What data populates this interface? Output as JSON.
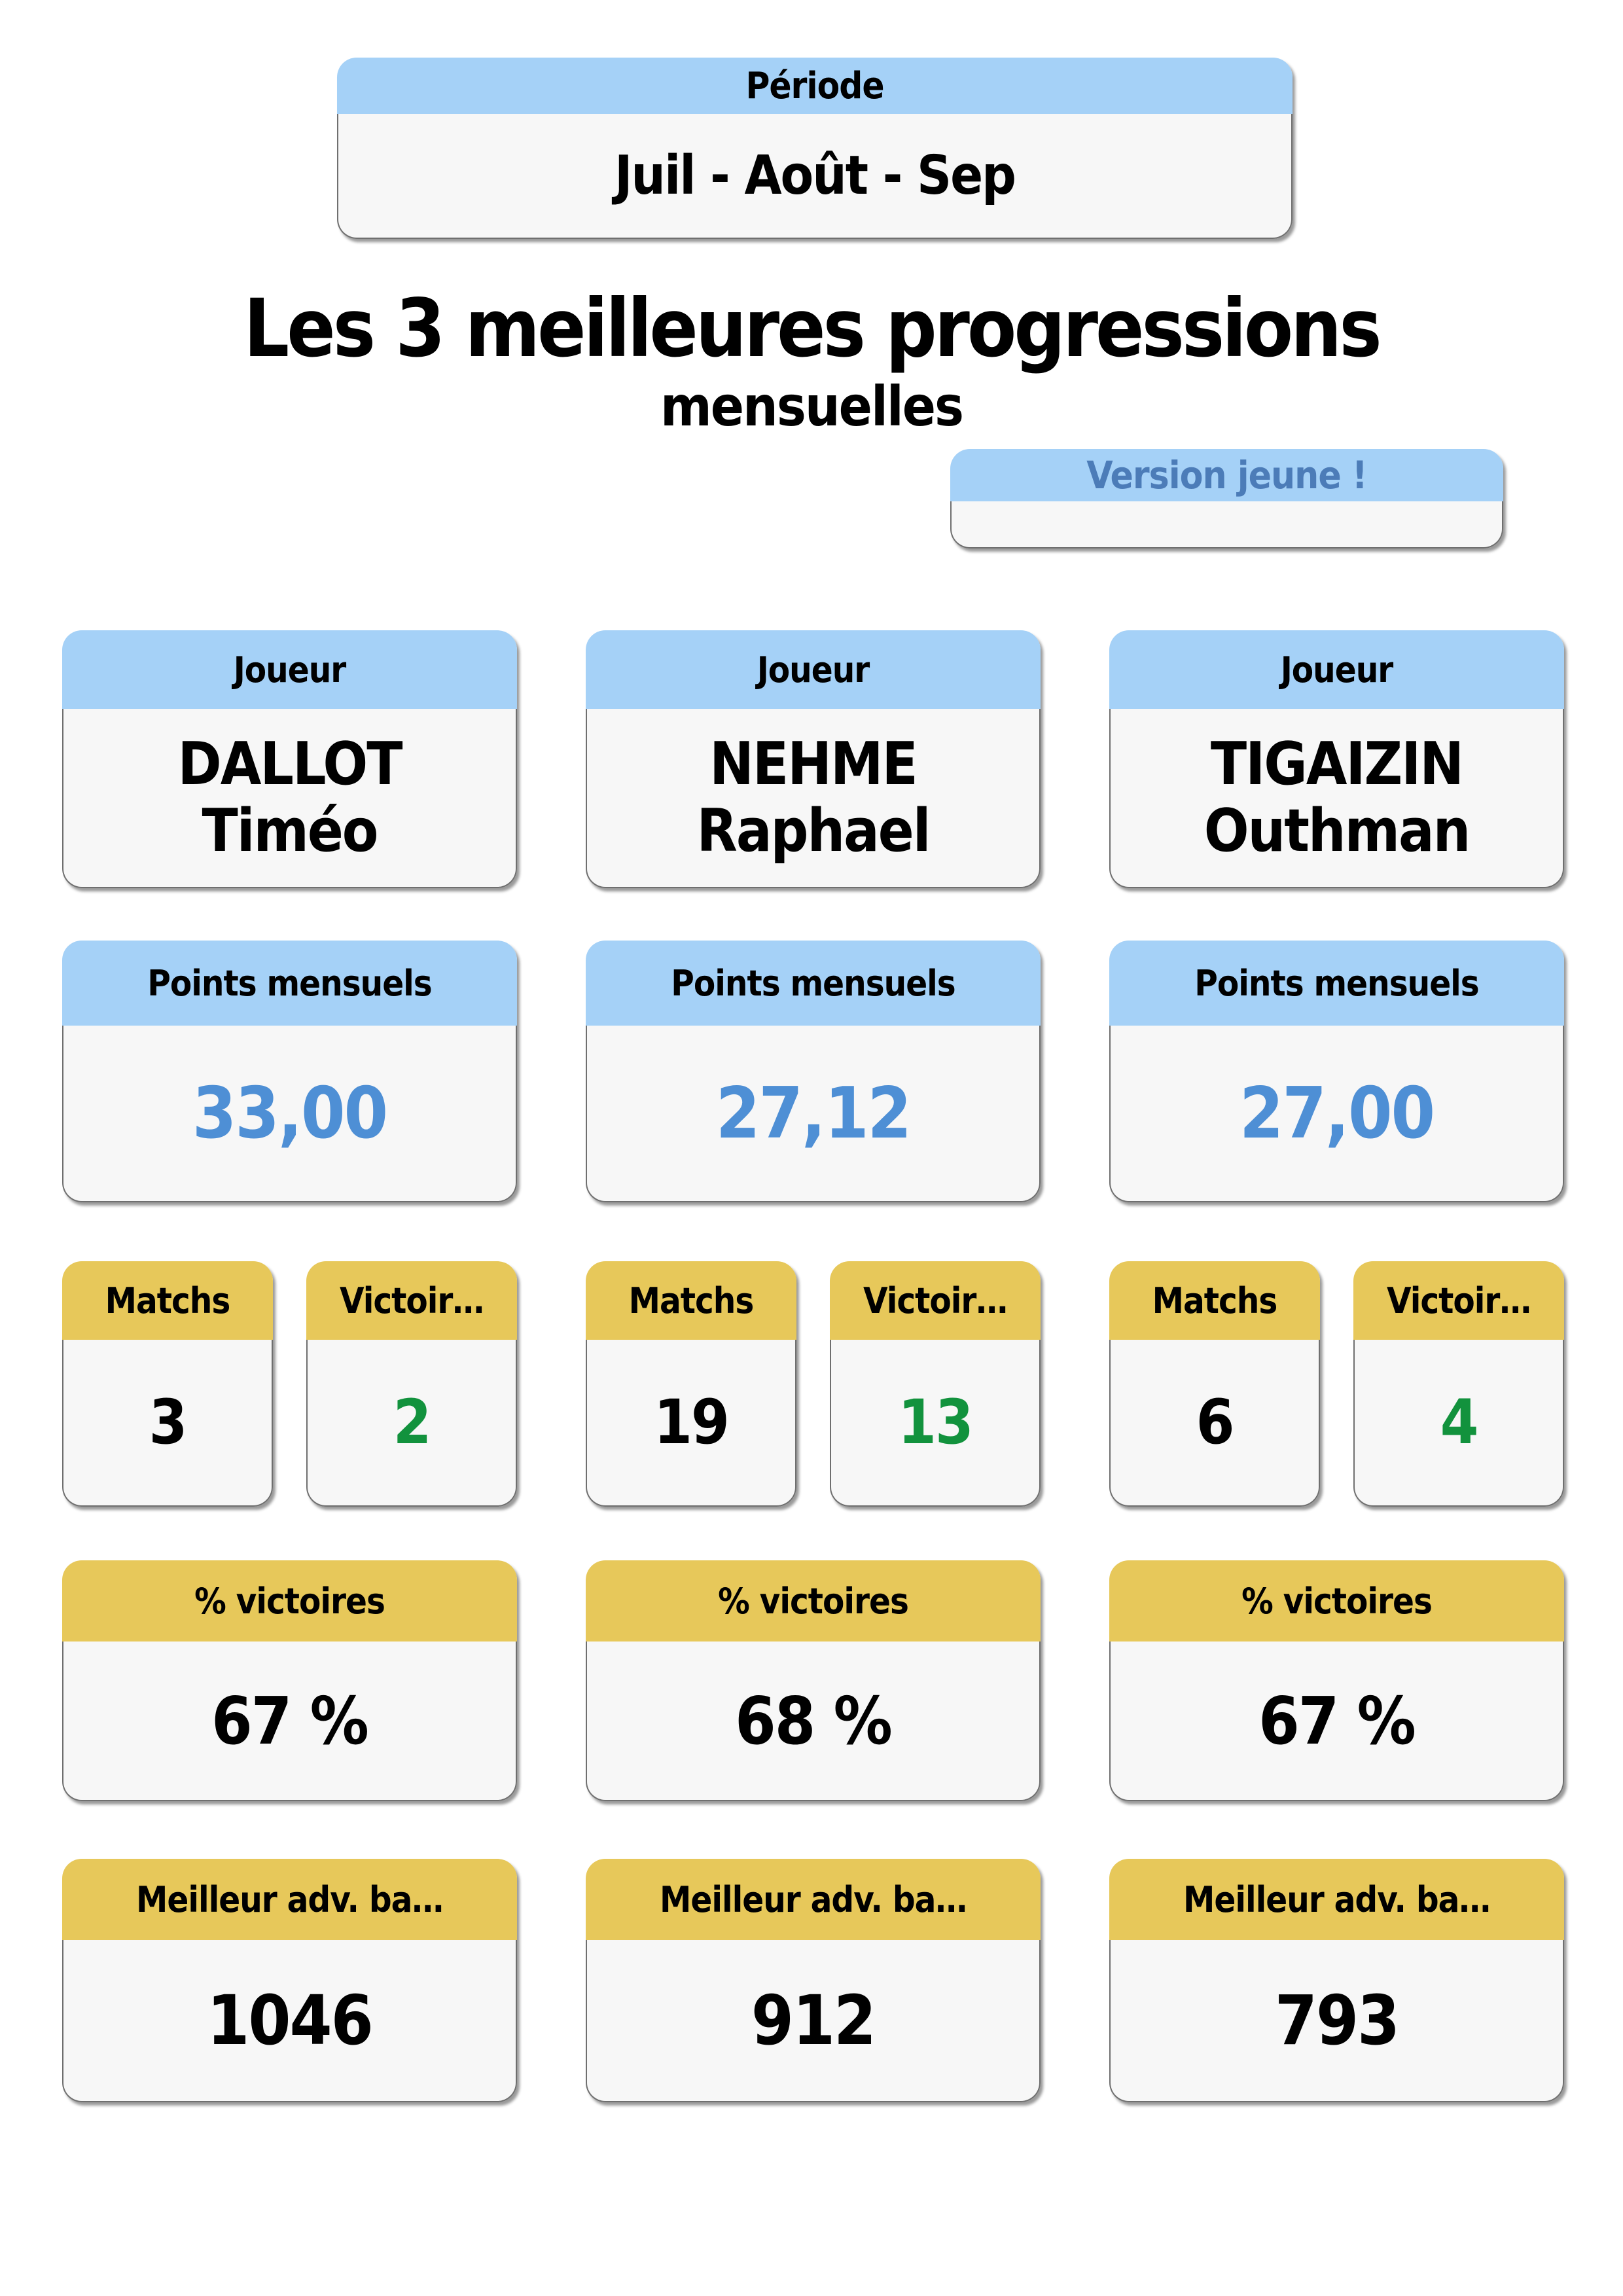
{
  "period": {
    "label": "Période",
    "value": "Juil - Août - Sep"
  },
  "title": "Les 3 meilleures progressions",
  "subtitle": "mensuelles",
  "badge_label": "Version jeune !",
  "labels": {
    "player": "Joueur",
    "monthly_points": "Points mensuels",
    "matches": "Matchs",
    "victories": "Victoir…",
    "win_pct": "% victoires",
    "best_opponent": "Meilleur adv. ba…"
  },
  "players": [
    {
      "last_name": "DALLOT",
      "first_name": "Timéo",
      "monthly_points": "33,00",
      "matches": "3",
      "victories": "2",
      "win_pct": "67 %",
      "best_opponent_points": "1046"
    },
    {
      "last_name": "NEHME",
      "first_name": "Raphael",
      "monthly_points": "27,12",
      "matches": "19",
      "victories": "13",
      "win_pct": "68 %",
      "best_opponent_points": "912"
    },
    {
      "last_name": "TIGAIZIN",
      "first_name": "Outhman",
      "monthly_points": "27,00",
      "matches": "6",
      "victories": "4",
      "win_pct": "67 %",
      "best_opponent_points": "793"
    }
  ],
  "colors": {
    "header_blue": "#a5d1f7",
    "header_yellow": "#e7c85a",
    "card_body_gray": "#f7f7f7",
    "card_border_gray": "#6f6f6f",
    "value_blue": "#4e8fd5",
    "value_green": "#12923d",
    "badge_text_blue": "#4c7cb8"
  }
}
